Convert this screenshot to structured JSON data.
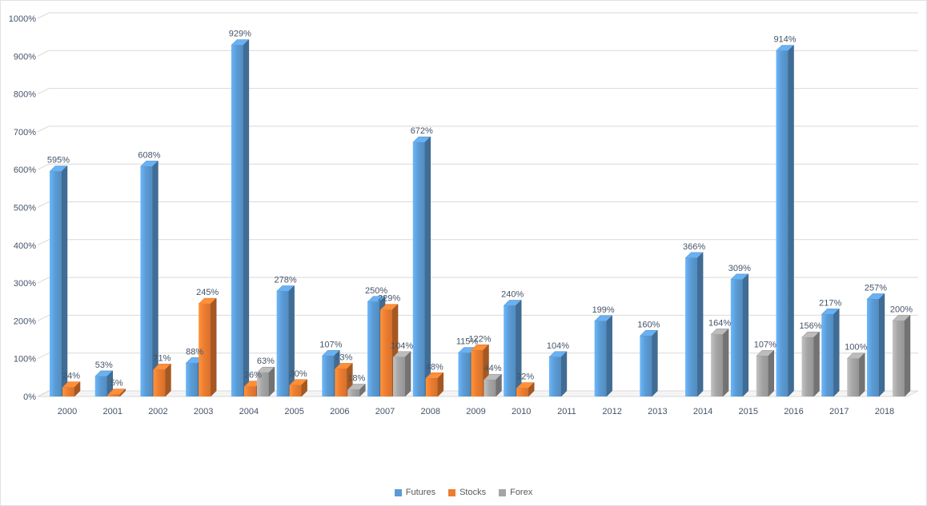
{
  "chart_data": {
    "type": "bar",
    "variant": "3d-clustered-column",
    "title": "",
    "xlabel": "",
    "ylabel": "",
    "categories": [
      "2000",
      "2001",
      "2002",
      "2003",
      "2004",
      "2005",
      "2006",
      "2007",
      "2008",
      "2009",
      "2010",
      "2011",
      "2012",
      "2013",
      "2014",
      "2015",
      "2016",
      "2017",
      "2018"
    ],
    "series": [
      {
        "name": "Futures",
        "color": "#5B9BD5",
        "values": [
          595,
          53,
          608,
          88,
          929,
          278,
          107,
          250,
          672,
          115,
          240,
          104,
          199,
          160,
          366,
          309,
          914,
          217,
          257
        ]
      },
      {
        "name": "Stocks",
        "color": "#ED7D31",
        "values": [
          24,
          5,
          71,
          245,
          26,
          30,
          73,
          229,
          48,
          122,
          22,
          null,
          null,
          null,
          null,
          null,
          null,
          null,
          null
        ]
      },
      {
        "name": "Forex",
        "color": "#A5A5A5",
        "values": [
          null,
          null,
          null,
          null,
          63,
          null,
          18,
          104,
          null,
          44,
          null,
          null,
          null,
          null,
          164,
          107,
          156,
          100,
          200
        ]
      }
    ],
    "y_axis": {
      "min": 0,
      "max": 1000,
      "step": 100,
      "suffix": "%",
      "ticks": [
        "0%",
        "100%",
        "200%",
        "300%",
        "400%",
        "500%",
        "600%",
        "700%",
        "800%",
        "900%",
        "1000%"
      ]
    },
    "data_labels": {
      "enabled": true,
      "suffix": "%"
    },
    "legend_position": "bottom",
    "grid": true,
    "grid_color": "#D9D9D9",
    "label_color": "#44546A",
    "legend_text_color": "#595959"
  }
}
